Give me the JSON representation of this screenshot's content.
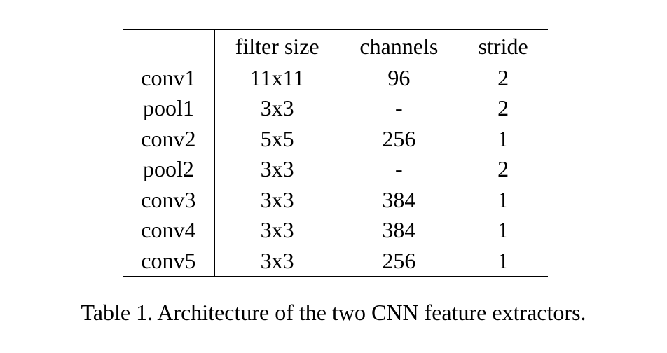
{
  "table": {
    "headers": [
      "",
      "filter size",
      "channels",
      "stride"
    ],
    "rows": [
      [
        "conv1",
        "11x11",
        "96",
        "2"
      ],
      [
        "pool1",
        "3x3",
        "-",
        "2"
      ],
      [
        "conv2",
        "5x5",
        "256",
        "1"
      ],
      [
        "pool2",
        "3x3",
        "-",
        "2"
      ],
      [
        "conv3",
        "3x3",
        "384",
        "1"
      ],
      [
        "conv4",
        "3x3",
        "384",
        "1"
      ],
      [
        "conv5",
        "3x3",
        "256",
        "1"
      ]
    ]
  },
  "caption": "Table 1. Architecture of the two CNN feature extractors."
}
